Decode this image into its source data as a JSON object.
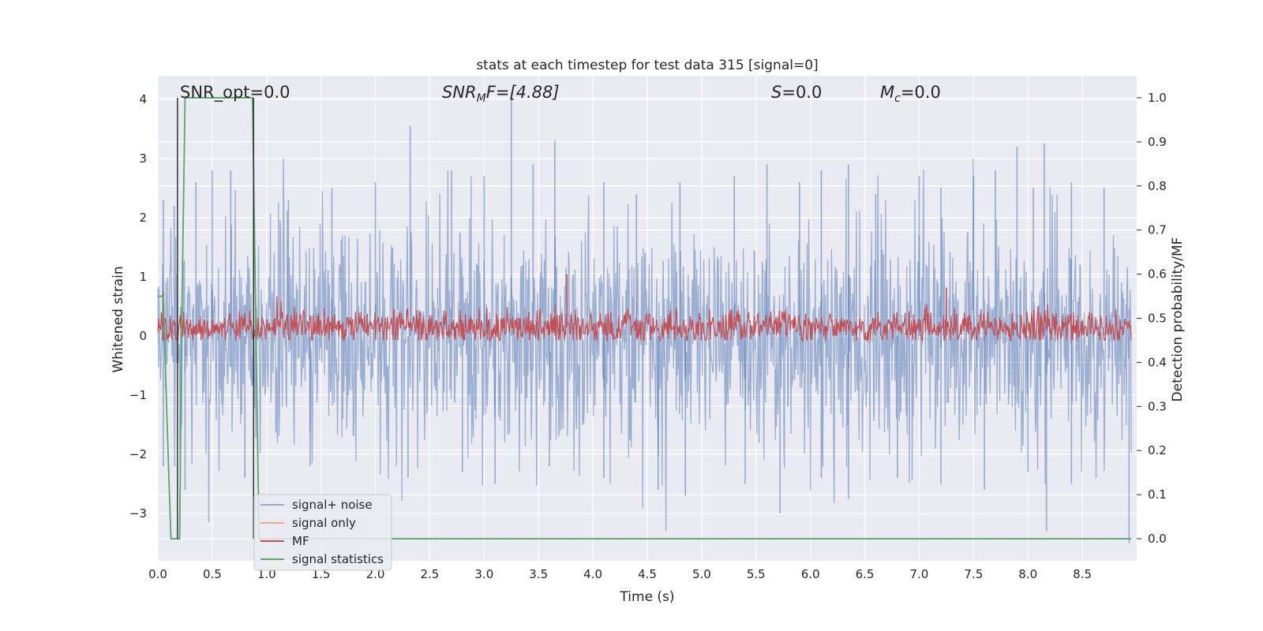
{
  "chart_data": {
    "type": "line",
    "title": "stats at each timestep for test data 315 [signal=0]",
    "xlabel": "Time (s)",
    "ylabel": "Whitened strain",
    "y2label": "Detection probability/MF",
    "xlim": [
      0.0,
      9.0
    ],
    "ylim": [
      -3.8,
      4.4
    ],
    "y2lim": [
      -0.05,
      1.05
    ],
    "grid": true,
    "legend_position": "lower-left",
    "x_ticks": [
      "0.0",
      "0.5",
      "1.0",
      "1.5",
      "2.0",
      "2.5",
      "3.0",
      "3.5",
      "4.0",
      "4.5",
      "5.0",
      "5.5",
      "6.0",
      "6.5",
      "7.0",
      "7.5",
      "8.0",
      "8.5"
    ],
    "y_ticks": [
      "4",
      "3",
      "2",
      "1",
      "0",
      "−1",
      "−2",
      "−3"
    ],
    "y2_ticks": [
      "1.0",
      "0.9",
      "0.8",
      "0.7",
      "0.6",
      "0.5",
      "0.4",
      "0.3",
      "0.2",
      "0.1",
      "0.0"
    ],
    "annotations": {
      "snr_opt": "SNR_opt=0.0",
      "snr_mf_base": "SNR",
      "snr_mf_sub": "M",
      "snr_mf_rest": "F=[4.88]",
      "s_italic": "S",
      "s_rest": "=0.0",
      "mc_base": "M",
      "mc_sub": "c",
      "mc_rest": "=0.0"
    },
    "series": [
      {
        "name": "signal+ noise",
        "color": "#4C72B0",
        "axis": "left",
        "description_stats": {
          "approx_min": -3.5,
          "approx_max": 4.0,
          "approx_std": 1.0
        },
        "peaks": [
          [
            0.05,
            2.3
          ],
          [
            0.15,
            2.2
          ],
          [
            0.35,
            2.6
          ],
          [
            0.5,
            2.8
          ],
          [
            0.67,
            2.8
          ],
          [
            0.88,
            2.6
          ],
          [
            1.2,
            2.3
          ],
          [
            1.6,
            2.5
          ],
          [
            2.0,
            2.6
          ],
          [
            2.32,
            3.55
          ],
          [
            2.7,
            2.8
          ],
          [
            3.0,
            2.7
          ],
          [
            3.25,
            4.1
          ],
          [
            3.45,
            2.9
          ],
          [
            3.65,
            3.3
          ],
          [
            4.1,
            2.6
          ],
          [
            4.4,
            2.4
          ],
          [
            4.8,
            2.6
          ],
          [
            5.3,
            2.7
          ],
          [
            5.6,
            2.9
          ],
          [
            5.9,
            2.6
          ],
          [
            6.1,
            2.8
          ],
          [
            6.35,
            2.9
          ],
          [
            6.6,
            2.4
          ],
          [
            7.0,
            2.7
          ],
          [
            7.2,
            2.5
          ],
          [
            7.5,
            2.7
          ],
          [
            7.7,
            2.8
          ],
          [
            7.9,
            3.2
          ],
          [
            8.05,
            2.5
          ],
          [
            8.15,
            3.25
          ],
          [
            8.4,
            2.6
          ],
          [
            8.7,
            2.5
          ]
        ],
        "troughs": [
          [
            0.05,
            -2.2
          ],
          [
            0.25,
            -2.6
          ],
          [
            0.8,
            -2.4
          ],
          [
            1.4,
            -2.2
          ],
          [
            2.3,
            -2.4
          ],
          [
            2.8,
            -2.3
          ],
          [
            3.1,
            -2.5
          ],
          [
            3.6,
            -2.2
          ],
          [
            4.1,
            -2.4
          ],
          [
            4.6,
            -2.6
          ],
          [
            4.85,
            -2.7
          ],
          [
            5.4,
            -2.5
          ],
          [
            5.72,
            -3.0
          ],
          [
            6.1,
            -2.4
          ],
          [
            6.35,
            -2.75
          ],
          [
            6.8,
            -2.4
          ],
          [
            7.2,
            -2.5
          ],
          [
            7.6,
            -2.6
          ],
          [
            8.0,
            -2.3
          ],
          [
            8.17,
            -3.3
          ],
          [
            8.4,
            -2.5
          ],
          [
            8.93,
            -3.5
          ]
        ]
      },
      {
        "name": "signal only",
        "color": "#DD8452",
        "axis": "left",
        "values": "flat 0 (hidden behind noise)"
      },
      {
        "name": "MF",
        "color": "#C44E52",
        "axis": "right",
        "baseline": 0.48,
        "band": [
          0.45,
          0.55
        ],
        "peaks": [
          [
            0.05,
            0.56
          ],
          [
            3.76,
            0.6
          ],
          [
            7.25,
            0.57
          ]
        ]
      },
      {
        "name": "signal statistics",
        "color": "#55A868",
        "axis": "right",
        "x": [
          0.0,
          0.05,
          0.08,
          0.12,
          0.17,
          0.2,
          0.22,
          0.25,
          0.35,
          0.5,
          0.7,
          0.87,
          0.9,
          0.93,
          1.0,
          2.0,
          4.0,
          6.0,
          8.0,
          8.95
        ],
        "y": [
          0.55,
          0.55,
          0.3,
          0.0,
          0.0,
          0.0,
          0.5,
          1.0,
          1.0,
          1.0,
          1.0,
          1.0,
          0.5,
          0.0,
          0.0,
          0.0,
          0.0,
          0.0,
          0.0,
          0.0
        ]
      }
    ],
    "vertical_lines": [
      {
        "x": 0.18,
        "color": "#333333",
        "axis_y": [
          0.0,
          1.0
        ]
      },
      {
        "x": 0.88,
        "color": "#333333",
        "axis_y": [
          0.0,
          1.0
        ]
      }
    ]
  },
  "legend": {
    "items": [
      {
        "label": "signal+ noise",
        "color": "#4C72B0"
      },
      {
        "label": "signal only",
        "color": "#DD8452"
      },
      {
        "label": "MF",
        "color": "#C44E52"
      },
      {
        "label": "signal statistics",
        "color": "#55A868"
      }
    ]
  },
  "colors": {
    "plot_background": "#EAEAF2",
    "grid": "#FFFFFF"
  }
}
